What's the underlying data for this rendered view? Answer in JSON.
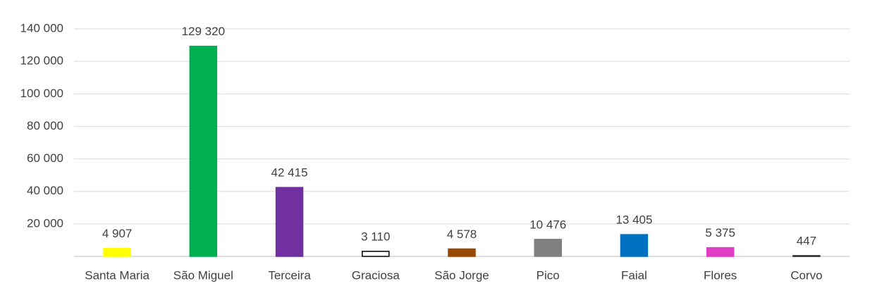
{
  "chart_data": {
    "type": "bar",
    "categories": [
      "Santa Maria",
      "São Miguel",
      "Terceira",
      "Graciosa",
      "São Jorge",
      "Pico",
      "Faial",
      "Flores",
      "Corvo"
    ],
    "values": [
      4907,
      129320,
      42415,
      3110,
      4578,
      10476,
      13405,
      5375,
      447
    ],
    "value_labels": [
      "4 907",
      "129 320",
      "42 415",
      "3 110",
      "4 578",
      "10 476",
      "13 405",
      "5 375",
      "447"
    ],
    "colors": [
      "#ffff00",
      "#00b050",
      "#7030a0",
      "#ffffff",
      "#974706",
      "#808080",
      "#0070c0",
      "#e03cc4",
      "#262626"
    ],
    "edgecolors": [
      "#ffff00",
      "#00b050",
      "#7030a0",
      "#000000",
      "#974706",
      "#808080",
      "#0070c0",
      "#e03cc4",
      "#262626"
    ],
    "ylim": [
      0,
      140000
    ],
    "yticks": [
      {
        "value": 20000,
        "label": "20 000"
      },
      {
        "value": 40000,
        "label": "40 000"
      },
      {
        "value": 60000,
        "label": "60 000"
      },
      {
        "value": 80000,
        "label": "80 000"
      },
      {
        "value": 100000,
        "label": "100 000"
      },
      {
        "value": 120000,
        "label": "120 000"
      },
      {
        "value": 140000,
        "label": "140 000"
      }
    ],
    "grid": true
  }
}
